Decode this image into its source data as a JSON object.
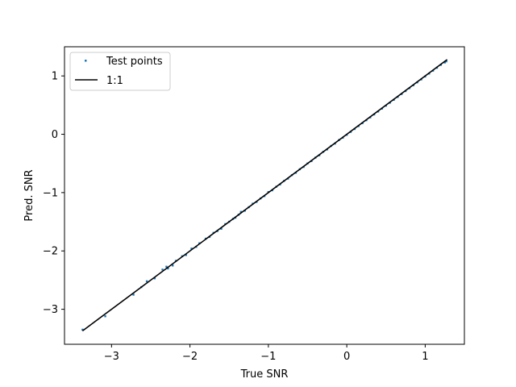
{
  "chart_data": {
    "type": "scatter",
    "title": "",
    "xlabel": "True SNR",
    "ylabel": "Pred. SNR",
    "xlim": [
      -3.6,
      1.5
    ],
    "ylim": [
      -3.6,
      1.5
    ],
    "xticks": [
      -3,
      -2,
      -1,
      0,
      1
    ],
    "yticks": [
      -3,
      -2,
      -1,
      0,
      1
    ],
    "xtick_labels": [
      "−3",
      "−2",
      "−1",
      "0",
      "1"
    ],
    "ytick_labels": [
      "−3",
      "−2",
      "−1",
      "0",
      "1"
    ],
    "grid": false,
    "legend_position": "upper-left",
    "series": [
      {
        "name": "Test points",
        "type": "scatter",
        "color": "#1f77b4",
        "x": [
          -3.37,
          -3.08,
          -2.72,
          -2.62,
          -2.55,
          -2.45,
          -2.35,
          -2.3,
          -2.28,
          -2.22,
          -2.18,
          -2.1,
          -2.05,
          -1.98,
          -1.92,
          -1.88,
          -1.8,
          -1.75,
          -1.7,
          -1.65,
          -1.6,
          -1.55,
          -1.5,
          -1.45,
          -1.42,
          -1.38,
          -1.35,
          -1.3,
          -1.25,
          -1.2,
          -1.15,
          -1.1,
          -1.05,
          -1.0,
          -0.95,
          -0.9,
          -0.85,
          -0.8,
          -0.75,
          -0.7,
          -0.65,
          -0.6,
          -0.55,
          -0.5,
          -0.45,
          -0.4,
          -0.35,
          -0.3,
          -0.25,
          -0.2,
          -0.15,
          -0.1,
          -0.05,
          0.0,
          0.05,
          0.1,
          0.15,
          0.2,
          0.25,
          0.3,
          0.35,
          0.4,
          0.45,
          0.5,
          0.55,
          0.6,
          0.65,
          0.7,
          0.75,
          0.8,
          0.85,
          0.9,
          0.95,
          1.0,
          1.05,
          1.1,
          1.15,
          1.2,
          1.25,
          1.27
        ],
        "y": [
          -3.35,
          -3.12,
          -2.75,
          -2.62,
          -2.52,
          -2.47,
          -2.32,
          -2.27,
          -2.3,
          -2.25,
          -2.17,
          -2.09,
          -2.07,
          -1.96,
          -1.93,
          -1.87,
          -1.79,
          -1.76,
          -1.69,
          -1.66,
          -1.62,
          -1.54,
          -1.5,
          -1.45,
          -1.43,
          -1.38,
          -1.33,
          -1.31,
          -1.25,
          -1.19,
          -1.16,
          -1.1,
          -1.06,
          -0.99,
          -0.96,
          -0.9,
          -0.86,
          -0.8,
          -0.76,
          -0.7,
          -0.66,
          -0.6,
          -0.56,
          -0.5,
          -0.46,
          -0.4,
          -0.36,
          -0.3,
          -0.26,
          -0.2,
          -0.16,
          -0.1,
          -0.06,
          -0.01,
          0.04,
          0.09,
          0.14,
          0.19,
          0.24,
          0.29,
          0.34,
          0.39,
          0.44,
          0.49,
          0.54,
          0.59,
          0.64,
          0.69,
          0.74,
          0.79,
          0.84,
          0.89,
          0.94,
          0.99,
          1.04,
          1.09,
          1.14,
          1.19,
          1.23,
          1.25
        ]
      },
      {
        "name": "1:1",
        "type": "line",
        "color": "#000000",
        "x": [
          -3.37,
          1.28
        ],
        "y": [
          -3.37,
          1.28
        ]
      }
    ]
  }
}
